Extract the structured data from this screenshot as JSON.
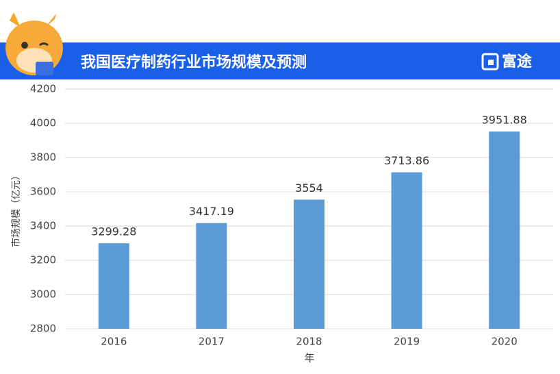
{
  "brand": "富途",
  "chart_data": {
    "type": "bar",
    "title": "我国医疗制药行业市场规模及预测",
    "x_label": "年",
    "y_label": "市场规模（亿元）",
    "categories": [
      "2016",
      "2017",
      "2018",
      "2019",
      "2020"
    ],
    "values": [
      3299.28,
      3417.19,
      3554,
      3713.86,
      3951.88
    ],
    "color": "#5b9bd5",
    "ylim": [
      2800,
      4200
    ],
    "yticks": [
      2800,
      3000,
      3200,
      3400,
      3600,
      3800,
      4000,
      4200
    ],
    "grid": true
  }
}
